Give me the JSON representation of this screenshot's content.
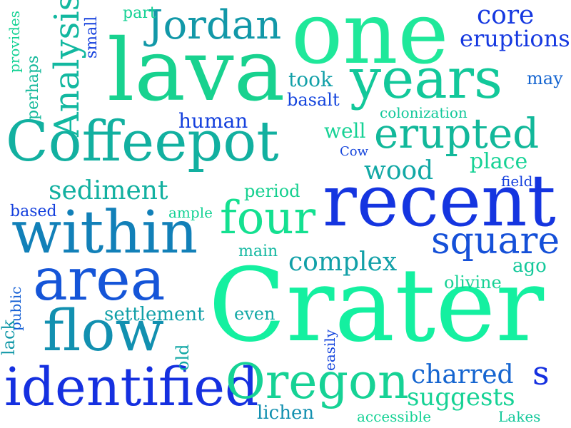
{
  "word_cloud": {
    "words": [
      {
        "text": "Crater",
        "color": "#14f0a0"
      },
      {
        "text": "lava",
        "color": "#18d28f"
      },
      {
        "text": "one",
        "color": "#1fe89a"
      },
      {
        "text": "recent",
        "color": "#1535e0"
      },
      {
        "text": "Coffeepot",
        "color": "#12b0a0"
      },
      {
        "text": "within",
        "color": "#1280b8"
      },
      {
        "text": "years",
        "color": "#12c89a"
      },
      {
        "text": "area",
        "color": "#1555d8"
      },
      {
        "text": "flow",
        "color": "#1290b0"
      },
      {
        "text": "identified",
        "color": "#1530e0"
      },
      {
        "text": "Oregon",
        "color": "#16d295"
      },
      {
        "text": "Jordan",
        "color": "#1298a8"
      },
      {
        "text": "erupted",
        "color": "#12b89a"
      },
      {
        "text": "four",
        "color": "#14e090"
      },
      {
        "text": "square",
        "color": "#1550d8"
      },
      {
        "text": "core",
        "color": "#1538e0"
      },
      {
        "text": "eruptions",
        "color": "#1538e0"
      },
      {
        "text": "complex",
        "color": "#12a0a8"
      },
      {
        "text": "sediment",
        "color": "#12b0a0"
      },
      {
        "text": "Analysis",
        "color": "#12b8a0"
      },
      {
        "text": "wood",
        "color": "#12a8a5"
      },
      {
        "text": "charred",
        "color": "#1565d0"
      },
      {
        "text": "suggests",
        "color": "#16d295"
      },
      {
        "text": "s",
        "color": "#1530e0"
      },
      {
        "text": "human",
        "color": "#1540dd"
      },
      {
        "text": "took",
        "color": "#12a0a8"
      },
      {
        "text": "well",
        "color": "#16d295"
      },
      {
        "text": "place",
        "color": "#16d295"
      },
      {
        "text": "basalt",
        "color": "#1545dd"
      },
      {
        "text": "colonization",
        "color": "#12c89a"
      },
      {
        "text": "period",
        "color": "#14d08f"
      },
      {
        "text": "may",
        "color": "#1565d0"
      },
      {
        "text": "ago",
        "color": "#12c89a"
      },
      {
        "text": "olivine",
        "color": "#16d295"
      },
      {
        "text": "settlement",
        "color": "#12a0a8"
      },
      {
        "text": "main",
        "color": "#12b8a0"
      },
      {
        "text": "even",
        "color": "#12a8a5"
      },
      {
        "text": "lichen",
        "color": "#1290b0"
      },
      {
        "text": "accessible",
        "color": "#16d295"
      },
      {
        "text": "Lakes",
        "color": "#12c89a"
      },
      {
        "text": "based",
        "color": "#1540dd"
      },
      {
        "text": "ample",
        "color": "#16d295"
      },
      {
        "text": "field",
        "color": "#1540dd"
      },
      {
        "text": "Cow",
        "color": "#1545dd"
      },
      {
        "text": "part",
        "color": "#16d295"
      },
      {
        "text": "small",
        "color": "#1540dd"
      },
      {
        "text": "provides",
        "color": "#16d295"
      },
      {
        "text": "perhaps",
        "color": "#12b89a"
      },
      {
        "text": "public",
        "color": "#1560d5"
      },
      {
        "text": "lack",
        "color": "#1298a8"
      },
      {
        "text": "old",
        "color": "#12a8a5"
      },
      {
        "text": "easily",
        "color": "#1545dd"
      }
    ]
  }
}
